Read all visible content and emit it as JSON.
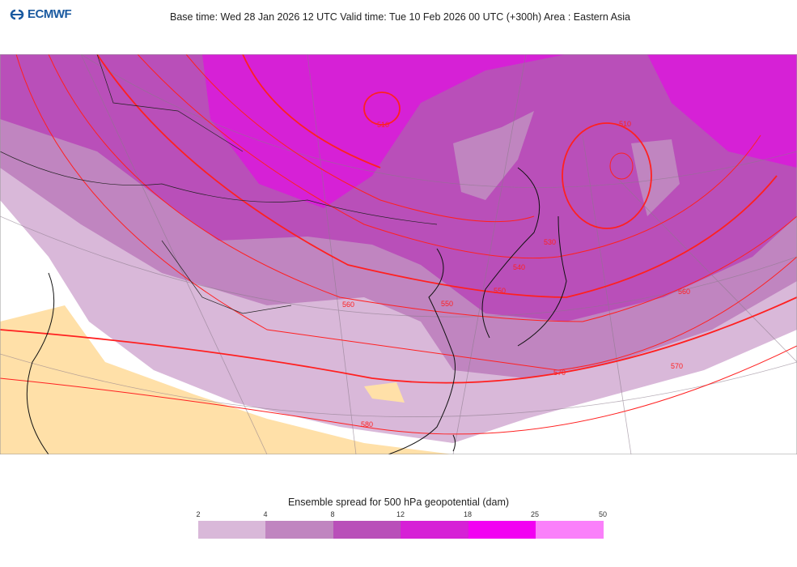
{
  "header": {
    "logo_text": "ECMWF",
    "title": "Base time: Wed 28 Jan 2026 12 UTC Valid time: Tue 10 Feb 2026 00 UTC (+300h) Area : Eastern Asia"
  },
  "map": {
    "area": "Eastern Asia",
    "field": "500 hPa geopotential (dam) contours with ensemble spread shading",
    "contour_color": "#ff0000",
    "land_outside_color": "#ffe0a8",
    "contour_labels": [
      "510",
      "520",
      "530",
      "540",
      "550",
      "560",
      "570",
      "580"
    ]
  },
  "legend": {
    "title": "Ensemble spread for 500 hPa geopotential (dam)",
    "ticks": [
      "2",
      "4",
      "8",
      "12",
      "18",
      "25",
      "50"
    ],
    "colors": [
      "#d9b8d9",
      "#c085c0",
      "#b94fb9",
      "#d621d6",
      "#f200f2",
      "#fa80fa"
    ]
  }
}
